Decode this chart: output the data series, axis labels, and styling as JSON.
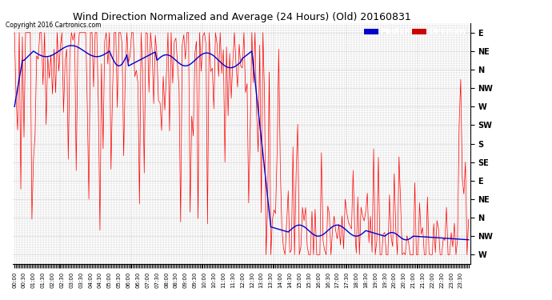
{
  "title": "Wind Direction Normalized and Average (24 Hours) (Old) 20160831",
  "copyright": "Copyright 2016 Cartronics.com",
  "ytick_labels": [
    "E",
    "NE",
    "N",
    "NW",
    "W",
    "SW",
    "S",
    "SE",
    "E",
    "NE",
    "N",
    "NW",
    "W"
  ],
  "ylim_min": 0,
  "ylim_max": 12,
  "background_color": "#ffffff",
  "grid_color": "#bbbbbb",
  "red_color": "#ff0000",
  "blue_color": "#0000cc",
  "black_color": "#000000",
  "legend_median_bg": "#0000cc",
  "legend_direction_bg": "#cc0000",
  "figwidth": 6.9,
  "figheight": 3.75,
  "dpi": 100
}
